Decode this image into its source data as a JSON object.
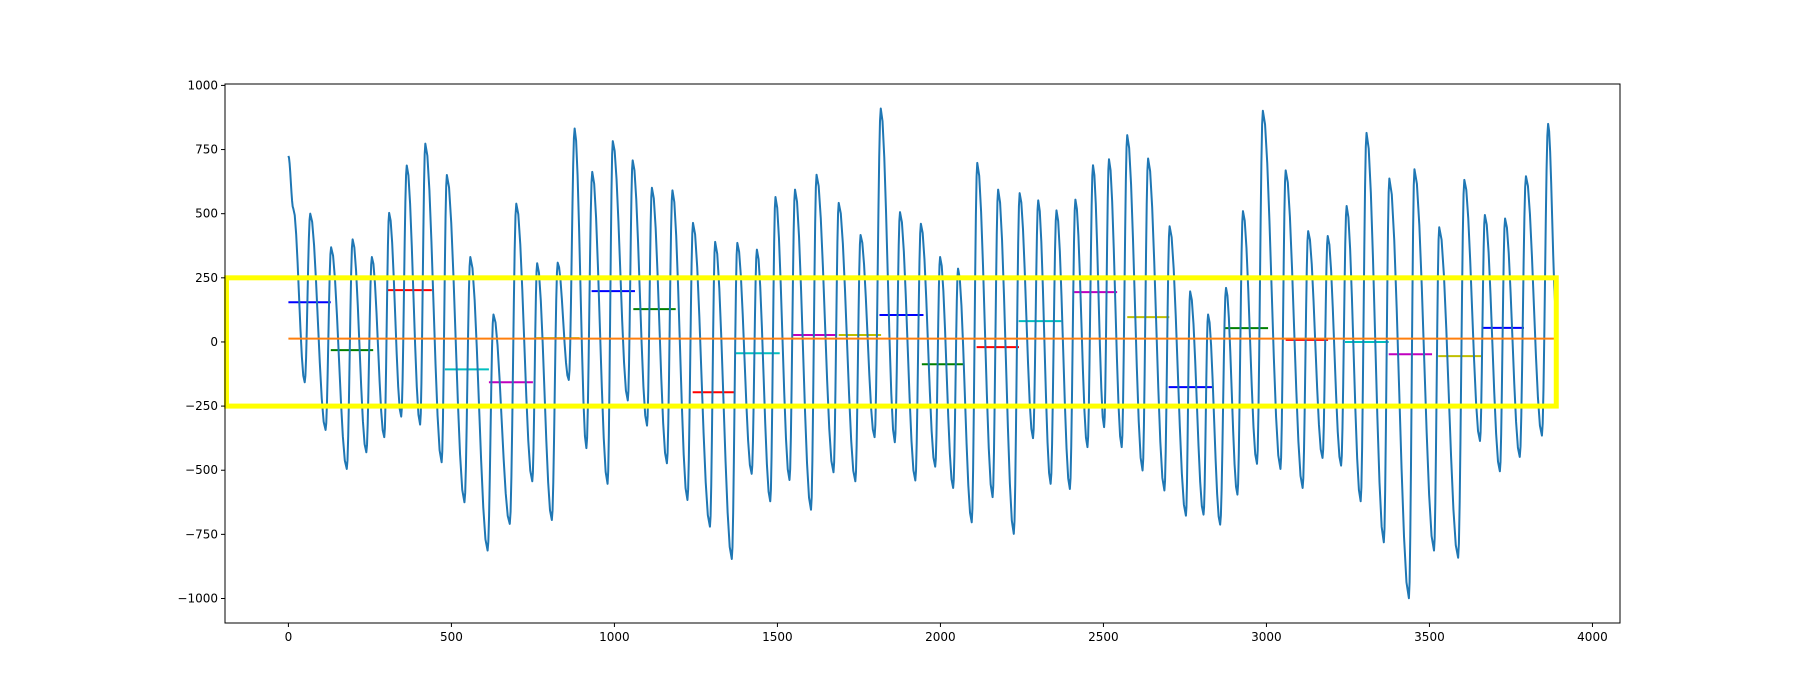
{
  "chart_data": {
    "type": "line",
    "title": "",
    "xlabel": "",
    "ylabel": "",
    "xlim": [
      -194.5,
      4084.5
    ],
    "ylim": [
      -1095.5,
      1005.5
    ],
    "grid": false,
    "x_ticks": [
      "0",
      "500",
      "1000",
      "1500",
      "2000",
      "2500",
      "3000",
      "3500",
      "4000"
    ],
    "x_tick_values": [
      0,
      500,
      1000,
      1500,
      2000,
      2500,
      3000,
      3500,
      4000
    ],
    "y_ticks": [
      "−1000",
      "−750",
      "−500",
      "−250",
      "0",
      "250",
      "500",
      "750",
      "1000"
    ],
    "y_tick_values": [
      -1000,
      -750,
      -500,
      -250,
      0,
      250,
      500,
      750,
      1000
    ],
    "signal": {
      "color": "#1f77b4",
      "extrema": [
        [
          0,
          725
        ],
        [
          15,
          520
        ],
        [
          50,
          -157
        ],
        [
          67,
          500
        ],
        [
          114,
          -343
        ],
        [
          131,
          369
        ],
        [
          179,
          -495
        ],
        [
          197,
          400
        ],
        [
          239,
          -430
        ],
        [
          256,
          331
        ],
        [
          294,
          -371
        ],
        [
          309,
          503
        ],
        [
          346,
          -291
        ],
        [
          363,
          688
        ],
        [
          404,
          -322
        ],
        [
          420,
          773
        ],
        [
          470,
          -469
        ],
        [
          486,
          651
        ],
        [
          540,
          -625
        ],
        [
          558,
          331
        ],
        [
          611,
          -813
        ],
        [
          629,
          107
        ],
        [
          679,
          -709
        ],
        [
          699,
          539
        ],
        [
          748,
          -543
        ],
        [
          763,
          307
        ],
        [
          808,
          -694
        ],
        [
          826,
          309
        ],
        [
          860,
          -148
        ],
        [
          878,
          832
        ],
        [
          914,
          -414
        ],
        [
          932,
          663
        ],
        [
          979,
          -553
        ],
        [
          995,
          783
        ],
        [
          1041,
          -228
        ],
        [
          1056,
          708
        ],
        [
          1100,
          -326
        ],
        [
          1115,
          601
        ],
        [
          1161,
          -473
        ],
        [
          1178,
          591
        ],
        [
          1224,
          -616
        ],
        [
          1241,
          464
        ],
        [
          1293,
          -720
        ],
        [
          1309,
          390
        ],
        [
          1360,
          -846
        ],
        [
          1377,
          386
        ],
        [
          1421,
          -514
        ],
        [
          1437,
          360
        ],
        [
          1478,
          -621
        ],
        [
          1494,
          565
        ],
        [
          1537,
          -538
        ],
        [
          1554,
          594
        ],
        [
          1603,
          -654
        ],
        [
          1620,
          652
        ],
        [
          1672,
          -508
        ],
        [
          1688,
          542
        ],
        [
          1739,
          -543
        ],
        [
          1755,
          417
        ],
        [
          1798,
          -371
        ],
        [
          1817,
          910
        ],
        [
          1860,
          -391
        ],
        [
          1876,
          506
        ],
        [
          1923,
          -540
        ],
        [
          1940,
          461
        ],
        [
          1984,
          -486
        ],
        [
          1999,
          331
        ],
        [
          2039,
          -569
        ],
        [
          2054,
          286
        ],
        [
          2096,
          -703
        ],
        [
          2113,
          698
        ],
        [
          2160,
          -605
        ],
        [
          2177,
          594
        ],
        [
          2225,
          -748
        ],
        [
          2243,
          580
        ],
        [
          2284,
          -375
        ],
        [
          2300,
          552
        ],
        [
          2338,
          -553
        ],
        [
          2356,
          513
        ],
        [
          2397,
          -573
        ],
        [
          2414,
          555
        ],
        [
          2451,
          -410
        ],
        [
          2468,
          689
        ],
        [
          2502,
          -332
        ],
        [
          2517,
          712
        ],
        [
          2556,
          -410
        ],
        [
          2573,
          806
        ],
        [
          2620,
          -501
        ],
        [
          2637,
          715
        ],
        [
          2687,
          -579
        ],
        [
          2703,
          451
        ],
        [
          2753,
          -677
        ],
        [
          2766,
          197
        ],
        [
          2807,
          -673
        ],
        [
          2821,
          107
        ],
        [
          2858,
          -712
        ],
        [
          2876,
          211
        ],
        [
          2911,
          -595
        ],
        [
          2928,
          510
        ],
        [
          2971,
          -475
        ],
        [
          2989,
          901
        ],
        [
          3043,
          -495
        ],
        [
          3059,
          669
        ],
        [
          3111,
          -569
        ],
        [
          3128,
          432
        ],
        [
          3172,
          -452
        ],
        [
          3188,
          413
        ],
        [
          3229,
          -482
        ],
        [
          3246,
          530
        ],
        [
          3289,
          -621
        ],
        [
          3307,
          815
        ],
        [
          3360,
          -781
        ],
        [
          3377,
          637
        ],
        [
          3437,
          -999
        ],
        [
          3454,
          673
        ],
        [
          3514,
          -813
        ],
        [
          3530,
          447
        ],
        [
          3588,
          -841
        ],
        [
          3607,
          632
        ],
        [
          3655,
          -386
        ],
        [
          3670,
          495
        ],
        [
          3716,
          -504
        ],
        [
          3732,
          481
        ],
        [
          3777,
          -448
        ],
        [
          3796,
          646
        ],
        [
          3845,
          -365
        ],
        [
          3864,
          850
        ],
        [
          3889,
          110
        ]
      ]
    },
    "mean_line": {
      "color": "#ff7f0e",
      "y": 13,
      "x": [
        0,
        3889
      ]
    },
    "segments": [
      {
        "x": [
          0,
          130
        ],
        "y": 155,
        "color": "#0000ff"
      },
      {
        "x": [
          130,
          260
        ],
        "y": -32,
        "color": "#008000"
      },
      {
        "x": [
          305,
          440
        ],
        "y": 202,
        "color": "#ff0000"
      },
      {
        "x": [
          480,
          615
        ],
        "y": -107,
        "color": "#00bfbf"
      },
      {
        "x": [
          615,
          750
        ],
        "y": -157,
        "color": "#bf00bf"
      },
      {
        "x": [
          760,
          893
        ],
        "y": 15,
        "color": "#bfbf00"
      },
      {
        "x": [
          930,
          1063
        ],
        "y": 198,
        "color": "#0000ff"
      },
      {
        "x": [
          1058,
          1188
        ],
        "y": 128,
        "color": "#008000"
      },
      {
        "x": [
          1240,
          1370
        ],
        "y": -196,
        "color": "#ff0000"
      },
      {
        "x": [
          1372,
          1507
        ],
        "y": -44,
        "color": "#00bfbf"
      },
      {
        "x": [
          1548,
          1683
        ],
        "y": 27,
        "color": "#bf00bf"
      },
      {
        "x": [
          1688,
          1818
        ],
        "y": 27,
        "color": "#bfbf00"
      },
      {
        "x": [
          1813,
          1948
        ],
        "y": 105,
        "color": "#0000ff"
      },
      {
        "x": [
          1943,
          2073
        ],
        "y": -87,
        "color": "#008000"
      },
      {
        "x": [
          2111,
          2241
        ],
        "y": -20,
        "color": "#ff0000"
      },
      {
        "x": [
          2240,
          2371
        ],
        "y": 81,
        "color": "#00bfbf"
      },
      {
        "x": [
          2410,
          2542
        ],
        "y": 194,
        "color": "#bf00bf"
      },
      {
        "x": [
          2573,
          2702
        ],
        "y": 97,
        "color": "#bfbf00"
      },
      {
        "x": [
          2700,
          2833
        ],
        "y": -176,
        "color": "#0000ff"
      },
      {
        "x": [
          2871,
          3005
        ],
        "y": 54,
        "color": "#008000"
      },
      {
        "x": [
          3059,
          3189
        ],
        "y": 8,
        "color": "#ff0000"
      },
      {
        "x": [
          3241,
          3375
        ],
        "y": 0,
        "color": "#00bfbf"
      },
      {
        "x": [
          3375,
          3508
        ],
        "y": -48,
        "color": "#bf00bf"
      },
      {
        "x": [
          3527,
          3660
        ],
        "y": -55,
        "color": "#bfbf00"
      },
      {
        "x": [
          3660,
          3790
        ],
        "y": 55,
        "color": "#0000ff"
      }
    ],
    "highlight_box": {
      "color": "#ffff00",
      "x": [
        -190,
        3889
      ],
      "y": [
        -250,
        250
      ]
    }
  }
}
